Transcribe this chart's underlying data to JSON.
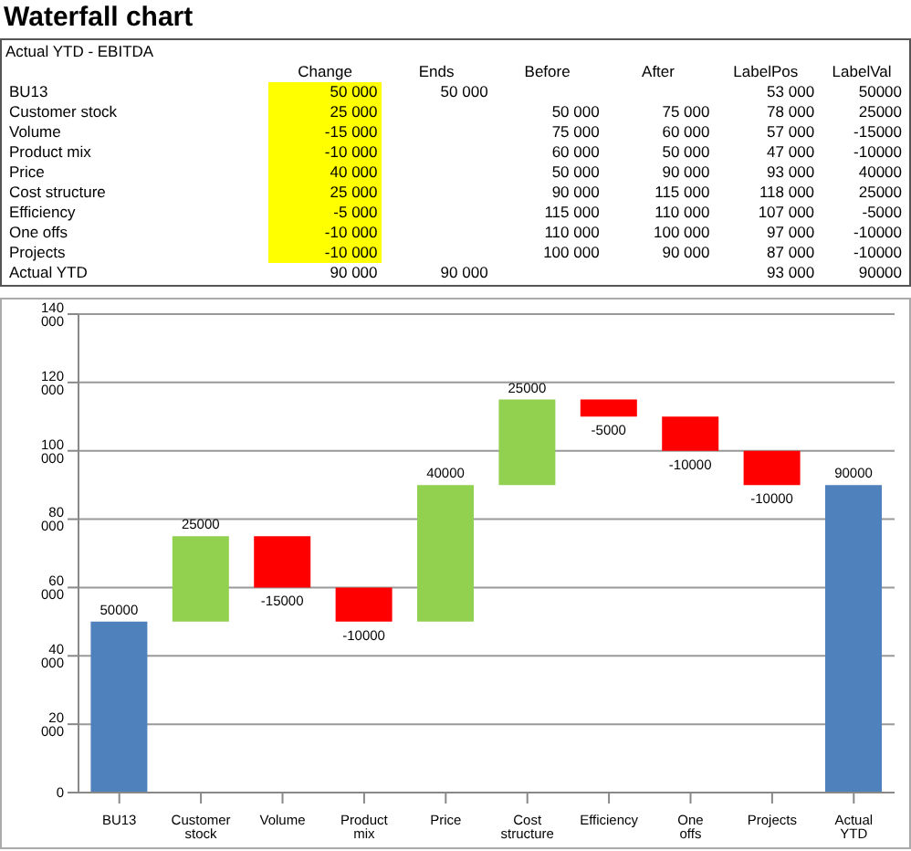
{
  "chart_data": {
    "type": "bar",
    "title": "Waterfall chart",
    "subtitle": "Actual YTD - EBITDA",
    "annotations": [
      "\tChange\tEnds\tBefore\tAfter\tLabelPos\tLabelVal",
      "BU13\t50 000\t50 000\t\t\t53 000\t50000",
      "Customer stock\t25 000\t\t50 000\t75 000\t78 000\t25000",
      "Volume\t-15 000\t\t75 000\t60 000\t57 000\t-15000",
      "Product mix\t-10 000\t\t60 000\t50 000\t47 000\t-10000",
      "Price\t40 000\t\t50 000\t90 000\t93 000\t40000",
      "Cost structure\t25 000\t\t90 000\t115 000\t118 000\t25000",
      "Efficiency\t-5 000\t\t115 000\t110 000\t107 000\t-5000",
      "One offs\t-10 000\t\t110 000\t100 000\t97 000\t-10000",
      "Projects\t-10 000\t\t100 000\t90 000\t87 000\t-10000",
      "Actual YTD\t90 000\t90 000\t\t\t93 000\t90000"
    ],
    "categories": [
      "BU13",
      "Customer stock",
      "Volume",
      "Product mix",
      "Price",
      "Cost structure",
      "Efficiency",
      "One offs",
      "Projects",
      "Actual YTD"
    ],
    "values": [
      50000,
      25000,
      -15000,
      -10000,
      40000,
      25000,
      -5000,
      -10000,
      -10000,
      90000
    ],
    "base": [
      0,
      50000,
      75000,
      60000,
      50000,
      90000,
      115000,
      110000,
      100000,
      0
    ],
    "colors": [
      "#4f81bd",
      "#92d050",
      "#ff0000",
      "#ff0000",
      "#92d050",
      "#92d050",
      "#ff0000",
      "#ff0000",
      "#ff0000",
      "#4f81bd"
    ],
    "data_labels": true,
    "ylim": [
      0,
      140000
    ],
    "yticks": [
      {
        "value": 0,
        "label": "0"
      },
      {
        "value": 20000,
        "label": "20 000"
      },
      {
        "value": 40000,
        "label": "40 000"
      },
      {
        "value": 60000,
        "label": "60 000"
      },
      {
        "value": 80000,
        "label": "80 000"
      },
      {
        "value": 100000,
        "label": "100 000"
      },
      {
        "value": 120000,
        "label": "120 000"
      },
      {
        "value": 140000,
        "label": "140 000"
      }
    ],
    "grid": "y",
    "legend": false
  }
}
